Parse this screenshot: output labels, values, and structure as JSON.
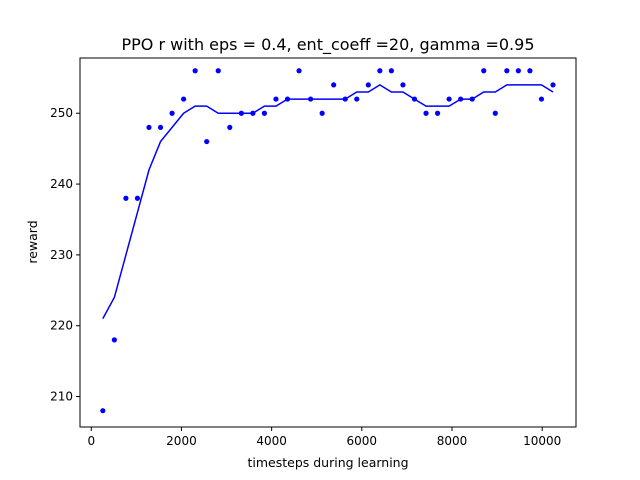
{
  "chart_data": {
    "type": "scatter",
    "title": "PPO r with eps = 0.4, ent_coeff =20, gamma =0.95",
    "xlabel": "timesteps during learning",
    "ylabel": "reward",
    "xlim": [
      -250,
      10750
    ],
    "ylim": [
      205.7,
      257.8
    ],
    "xticks": [
      0,
      2000,
      4000,
      6000,
      8000,
      10000
    ],
    "yticks": [
      210,
      220,
      230,
      240,
      250
    ],
    "grid": false,
    "color": "#0000ff",
    "series": [
      {
        "type": "scatter",
        "marker": "dot",
        "points": [
          [
            256,
            208
          ],
          [
            512,
            218
          ],
          [
            768,
            238
          ],
          [
            1024,
            238
          ],
          [
            1280,
            248
          ],
          [
            1536,
            248
          ],
          [
            1792,
            250
          ],
          [
            2048,
            252
          ],
          [
            2304,
            256
          ],
          [
            2560,
            246
          ],
          [
            2816,
            256
          ],
          [
            3072,
            248
          ],
          [
            3328,
            250
          ],
          [
            3584,
            250
          ],
          [
            3840,
            250
          ],
          [
            4096,
            252
          ],
          [
            4352,
            252
          ],
          [
            4608,
            256
          ],
          [
            4864,
            252
          ],
          [
            5120,
            250
          ],
          [
            5376,
            254
          ],
          [
            5632,
            252
          ],
          [
            5888,
            252
          ],
          [
            6144,
            254
          ],
          [
            6400,
            256
          ],
          [
            6656,
            256
          ],
          [
            6912,
            254
          ],
          [
            7168,
            252
          ],
          [
            7424,
            250
          ],
          [
            7680,
            250
          ],
          [
            7936,
            252
          ],
          [
            8192,
            252
          ],
          [
            8448,
            252
          ],
          [
            8704,
            256
          ],
          [
            8960,
            250
          ],
          [
            9216,
            256
          ],
          [
            9472,
            256
          ],
          [
            9728,
            256
          ],
          [
            9984,
            252
          ],
          [
            10240,
            254
          ]
        ]
      },
      {
        "type": "line",
        "points": [
          [
            256,
            221
          ],
          [
            512,
            224
          ],
          [
            768,
            230
          ],
          [
            1024,
            236
          ],
          [
            1280,
            242
          ],
          [
            1536,
            246
          ],
          [
            1792,
            248
          ],
          [
            2048,
            250
          ],
          [
            2304,
            251
          ],
          [
            2560,
            251
          ],
          [
            2816,
            250
          ],
          [
            3072,
            250
          ],
          [
            3328,
            250
          ],
          [
            3584,
            250
          ],
          [
            3840,
            251
          ],
          [
            4096,
            251
          ],
          [
            4352,
            252
          ],
          [
            4608,
            252
          ],
          [
            4864,
            252
          ],
          [
            5120,
            252
          ],
          [
            5376,
            252
          ],
          [
            5632,
            252
          ],
          [
            5888,
            253
          ],
          [
            6144,
            253
          ],
          [
            6400,
            254
          ],
          [
            6656,
            253
          ],
          [
            6912,
            253
          ],
          [
            7168,
            252
          ],
          [
            7424,
            251
          ],
          [
            7680,
            251
          ],
          [
            7936,
            251
          ],
          [
            8192,
            252
          ],
          [
            8448,
            252
          ],
          [
            8704,
            253
          ],
          [
            8960,
            253
          ],
          [
            9216,
            254
          ],
          [
            9472,
            254
          ],
          [
            9728,
            254
          ],
          [
            9984,
            254
          ],
          [
            10240,
            253
          ]
        ]
      }
    ]
  }
}
